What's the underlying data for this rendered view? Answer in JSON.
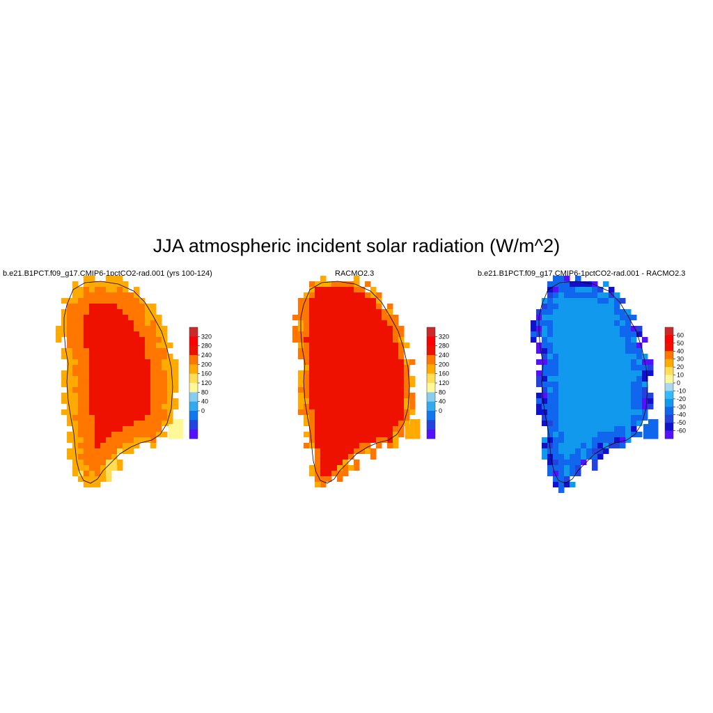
{
  "title": "JJA atmospheric incident solar radiation (W/m^2)",
  "panels": [
    {
      "title": "b.e21.B1PCT.f09_g17.CMIP6-1pctCO2-rad.001 (yrs 100-124)"
    },
    {
      "title": "RACMO2.3"
    },
    {
      "title": "b.e21.B1PCT.f09_g17.CMIP6-1pctCO2-rad.001 - RACMO2.3"
    }
  ],
  "chart_data": [
    {
      "type": "heatmap",
      "title": "b.e21.B1PCT.f09_g17.CMIP6-1pctCO2-rad.001 (yrs 100-124)",
      "field": "JJA atmospheric incident solar radiation",
      "units": "W/m^2",
      "colorbar": {
        "ticks": [
          320,
          280,
          240,
          200,
          160,
          120,
          80,
          40,
          0
        ],
        "colors": [
          "#cc2a2a",
          "#ff0000",
          "#ee1100",
          "#ff7700",
          "#ffaa00",
          "#ffdd55",
          "#fff899",
          "#88ccee",
          "#33aaee",
          "#1177ee",
          "#2244dd",
          "#5511ff"
        ]
      },
      "spatial_pattern": {
        "interior_max": 290,
        "mid_band": 260,
        "coastal": 200
      }
    },
    {
      "type": "heatmap",
      "title": "RACMO2.3",
      "field": "JJA atmospheric incident solar radiation",
      "units": "W/m^2",
      "colorbar": {
        "ticks": [
          320,
          280,
          240,
          200,
          160,
          120,
          80,
          40,
          0
        ],
        "colors": [
          "#cc2a2a",
          "#ff0000",
          "#ee1100",
          "#ff7700",
          "#ffaa00",
          "#ffdd55",
          "#fff899",
          "#88ccee",
          "#33aaee",
          "#1177ee",
          "#2244dd",
          "#5511ff"
        ]
      },
      "spatial_pattern": {
        "interior_max": 300,
        "coastal": 240
      }
    },
    {
      "type": "heatmap",
      "title": "b.e21.B1PCT.f09_g17.CMIP6-1pctCO2-rad.001 - RACMO2.3",
      "field": "JJA atmospheric incident solar radiation difference",
      "units": "W/m^2",
      "colorbar": {
        "ticks": [
          60,
          50,
          40,
          30,
          20,
          10,
          0,
          -10,
          -20,
          -30,
          -40,
          -50,
          -60
        ],
        "colors": [
          "#cc2a2a",
          "#ff0000",
          "#ee1100",
          "#ff7700",
          "#ffaa00",
          "#ffdd55",
          "#fff899",
          "#aad8ee",
          "#33bbff",
          "#1199ee",
          "#1166ee",
          "#2244dd",
          "#1111cc",
          "#5511ff"
        ]
      },
      "spatial_pattern": {
        "interior": -15,
        "margins": -35
      }
    }
  ]
}
